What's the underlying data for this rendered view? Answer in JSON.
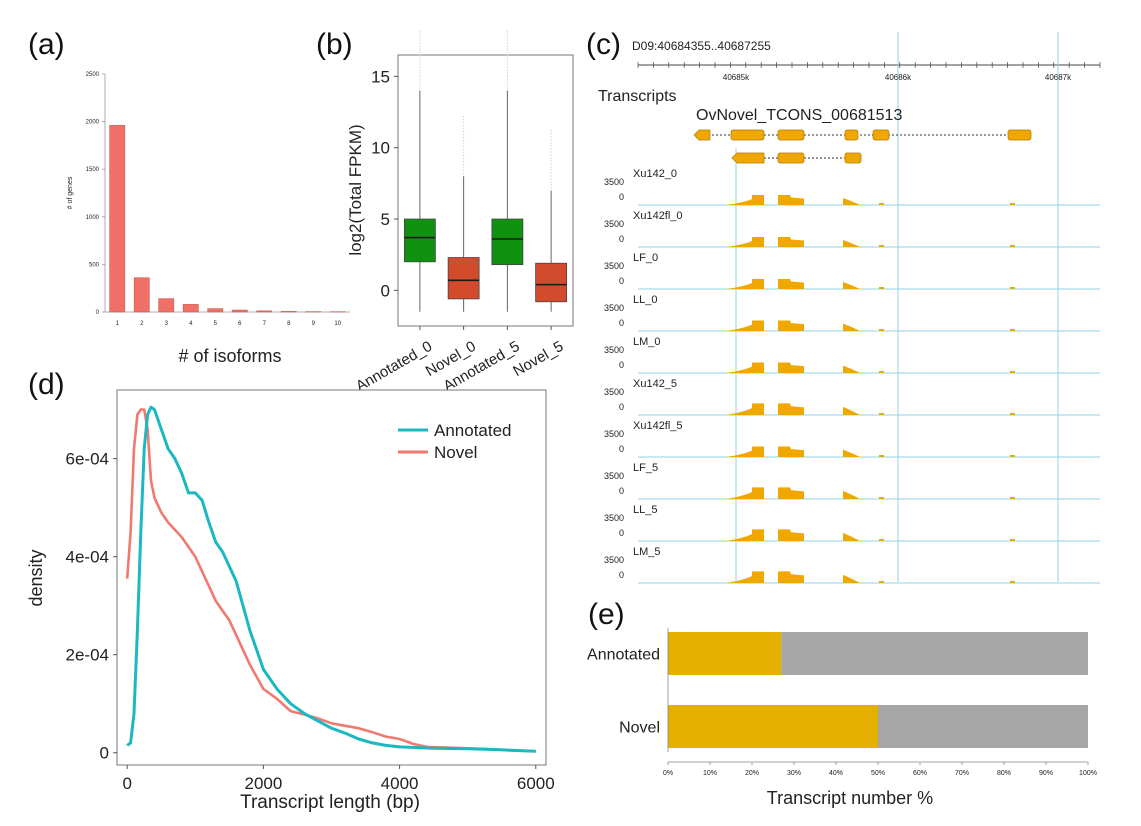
{
  "panels": {
    "a": {
      "label": "(a)"
    },
    "b": {
      "label": "(b)"
    },
    "c": {
      "label": "(c)"
    },
    "d": {
      "label": "(d)"
    },
    "e": {
      "label": "(e)"
    }
  },
  "colors": {
    "bar_red": "#f07068",
    "box_green": "#119110",
    "box_red": "#d24b2c",
    "annotated_line": "#1cb8c2",
    "novel_line": "#f07a70",
    "track_orange": "#f0a800",
    "bar_gold": "#e6b000",
    "bar_gray": "#a6a6a6",
    "guide_blue": "#8fd3e6"
  },
  "chart_data": [
    {
      "id": "a",
      "type": "bar",
      "categories": [
        "1",
        "2",
        "3",
        "4",
        "5",
        "6",
        "7",
        "8",
        "9",
        "10"
      ],
      "values": [
        1960,
        360,
        140,
        80,
        35,
        20,
        12,
        6,
        4,
        3
      ],
      "xlabel": "# of isoforms",
      "ylabel": "# of genes",
      "ylim": [
        0,
        2500
      ],
      "yticks": [
        "0",
        "500",
        "1000",
        "1500",
        "2000",
        "2500"
      ]
    },
    {
      "id": "b",
      "type": "box",
      "categories": [
        "Annotated_0",
        "Novel_0",
        "Annotated_5",
        "Novel_5"
      ],
      "boxes": [
        {
          "q1": 2.0,
          "median": 3.7,
          "q3": 5.0,
          "min": -1.5,
          "max": 14.0,
          "color": "green"
        },
        {
          "q1": -0.6,
          "median": 0.7,
          "q3": 2.3,
          "min": -1.5,
          "max": 8.0,
          "color": "red"
        },
        {
          "q1": 1.8,
          "median": 3.6,
          "q3": 5.0,
          "min": -1.5,
          "max": 14.0,
          "color": "green"
        },
        {
          "q1": -0.8,
          "median": 0.4,
          "q3": 1.9,
          "min": -1.5,
          "max": 7.0,
          "color": "red"
        }
      ],
      "ylabel": "log2(Total FPKM)",
      "ylim": [
        -2.5,
        16.5
      ],
      "yticks": [
        "0",
        "5",
        "10",
        "15"
      ]
    },
    {
      "id": "c",
      "type": "genome_tracks",
      "region": "D09:40684355..40687255",
      "ruler_ticks": [
        "40685k",
        "40686k",
        "40687k"
      ],
      "transcripts_title": "Transcripts",
      "transcript_name": "OvNovel_TCONS_00681513",
      "tracks": [
        {
          "name": "Xu142_0",
          "scale": [
            1.0,
            0.55,
            0.1
          ]
        },
        {
          "name": "Xu142fl_0",
          "scale": [
            1.0,
            0.55,
            0.1
          ]
        },
        {
          "name": "LF_0",
          "scale": [
            1.0,
            0.55,
            0.1
          ]
        },
        {
          "name": "LL_0",
          "scale": [
            1.0,
            0.6,
            0.1
          ]
        },
        {
          "name": "LM_0",
          "scale": [
            1.0,
            0.6,
            0.1
          ]
        },
        {
          "name": "Xu142_5",
          "scale": [
            1.0,
            0.7,
            0.15
          ]
        },
        {
          "name": "Xu142fl_5",
          "scale": [
            1.0,
            0.6,
            0.1
          ]
        },
        {
          "name": "LF_5",
          "scale": [
            1.0,
            0.7,
            0.15
          ]
        },
        {
          "name": "LL_5",
          "scale": [
            1.0,
            0.7,
            0.15
          ]
        },
        {
          "name": "LM_5",
          "scale": [
            1.0,
            0.7,
            0.15
          ]
        }
      ],
      "track_max": "3500",
      "track_min": "0"
    },
    {
      "id": "d",
      "type": "line",
      "xlabel": "Transcript length (bp)",
      "ylabel": "density",
      "xlim": [
        -150,
        6150
      ],
      "ylim": [
        -2.5e-05,
        0.00074
      ],
      "xticks": [
        "0",
        "2000",
        "4000",
        "6000"
      ],
      "yticks": [
        "0",
        "2e-04",
        "4e-04",
        "6e-04"
      ],
      "legend": "top-right",
      "series": [
        {
          "name": "Annotated",
          "points": [
            [
              0,
              1.5e-05
            ],
            [
              50,
              2e-05
            ],
            [
              100,
              8e-05
            ],
            [
              150,
              0.00025
            ],
            [
              200,
              0.00045
            ],
            [
              250,
              0.00062
            ],
            [
              300,
              0.00069
            ],
            [
              350,
              0.000705
            ],
            [
              400,
              0.0007
            ],
            [
              500,
              0.00066
            ],
            [
              600,
              0.00062
            ],
            [
              700,
              0.0006
            ],
            [
              800,
              0.00057
            ],
            [
              900,
              0.00053
            ],
            [
              1000,
              0.00053
            ],
            [
              1100,
              0.000515
            ],
            [
              1200,
              0.00047
            ],
            [
              1300,
              0.00043
            ],
            [
              1400,
              0.00041
            ],
            [
              1500,
              0.00038
            ],
            [
              1600,
              0.00035
            ],
            [
              1700,
              0.0003
            ],
            [
              1800,
              0.00025
            ],
            [
              1900,
              0.00021
            ],
            [
              2000,
              0.00017
            ],
            [
              2200,
              0.00013
            ],
            [
              2400,
              0.0001
            ],
            [
              2600,
              8e-05
            ],
            [
              2800,
              6.5e-05
            ],
            [
              3000,
              5e-05
            ],
            [
              3200,
              4e-05
            ],
            [
              3400,
              2.8e-05
            ],
            [
              3600,
              2e-05
            ],
            [
              3800,
              1.5e-05
            ],
            [
              4000,
              1.2e-05
            ],
            [
              4500,
              9e-06
            ],
            [
              5000,
              8e-06
            ],
            [
              5500,
              6e-06
            ],
            [
              6000,
              3e-06
            ]
          ]
        },
        {
          "name": "Novel",
          "points": [
            [
              0,
              0.000355
            ],
            [
              50,
              0.00045
            ],
            [
              100,
              0.00062
            ],
            [
              150,
              0.00069
            ],
            [
              200,
              0.0007
            ],
            [
              250,
              0.0007
            ],
            [
              300,
              0.00066
            ],
            [
              350,
              0.000555
            ],
            [
              400,
              0.00052
            ],
            [
              500,
              0.00049
            ],
            [
              600,
              0.00047
            ],
            [
              700,
              0.000455
            ],
            [
              800,
              0.00044
            ],
            [
              900,
              0.00042
            ],
            [
              1000,
              0.0004
            ],
            [
              1100,
              0.00037
            ],
            [
              1200,
              0.00034
            ],
            [
              1300,
              0.00031
            ],
            [
              1400,
              0.00029
            ],
            [
              1500,
              0.00027
            ],
            [
              1600,
              0.00024
            ],
            [
              1700,
              0.00021
            ],
            [
              1800,
              0.00018
            ],
            [
              1900,
              0.000155
            ],
            [
              2000,
              0.00013
            ],
            [
              2200,
              0.00011
            ],
            [
              2400,
              8.5e-05
            ],
            [
              2600,
              7.8e-05
            ],
            [
              2800,
              7e-05
            ],
            [
              3000,
              6e-05
            ],
            [
              3200,
              5.5e-05
            ],
            [
              3400,
              5e-05
            ],
            [
              3600,
              4.2e-05
            ],
            [
              3800,
              3.3e-05
            ],
            [
              4000,
              2.8e-05
            ],
            [
              4200,
              1.8e-05
            ],
            [
              4400,
              1.2e-05
            ],
            [
              4800,
              1e-05
            ],
            [
              5200,
              8e-06
            ],
            [
              5600,
              5e-06
            ],
            [
              6000,
              3e-06
            ]
          ]
        }
      ]
    },
    {
      "id": "e",
      "type": "stacked_bar_horizontal",
      "categories": [
        "Annotated",
        "Novel"
      ],
      "values_gold_percent": [
        27,
        50
      ],
      "xlabel": "Transcript number %",
      "xticks": [
        "0%",
        "10%",
        "20%",
        "30%",
        "40%",
        "50%",
        "60%",
        "70%",
        "80%",
        "90%",
        "100%"
      ],
      "xlim": [
        0,
        100
      ]
    }
  ]
}
